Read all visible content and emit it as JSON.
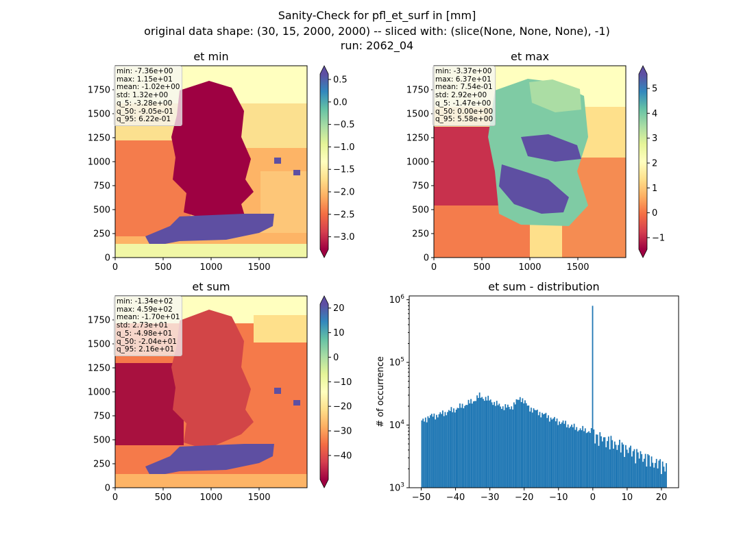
{
  "figure": {
    "title_lines": [
      "Sanity-Check for pfl_et_surf in [mm]",
      "original data shape: (30, 15, 2000, 2000) -- sliced with: (slice(None, None, None), -1)",
      "run: 2062_04"
    ]
  },
  "colormap": "Spectral",
  "colors": {
    "histogram_bar": "#1f77b4",
    "no_data": "#ffffbf",
    "extreme_low": "#9e0142",
    "extreme_high": "#5e4fa2"
  },
  "chart_data": [
    {
      "type": "heatmap",
      "title": "et min",
      "xlim": [
        0,
        2000
      ],
      "ylim": [
        0,
        2000
      ],
      "xticks": [
        "0",
        "500",
        "1000",
        "1500"
      ],
      "yticks": [
        "0",
        "250",
        "500",
        "750",
        "1000",
        "1250",
        "1500",
        "1750"
      ],
      "colorbar": {
        "vmin": -3.28,
        "vmax": 0.622,
        "ticks": [
          "0.5",
          "0.0",
          "−0.5",
          "−1.0",
          "−1.5",
          "−2.0",
          "−2.5",
          "−3.0"
        ],
        "extend": "both"
      },
      "stats": [
        "min: -7.36e+00",
        "max: 1.15e+01",
        "mean: -1.02e+00",
        "std: 1.32e+00",
        "q_5: -3.28e+00",
        "q_50: -9.05e-01",
        "q_95: 6.22e-01"
      ]
    },
    {
      "type": "heatmap",
      "title": "et max",
      "xlim": [
        0,
        2000
      ],
      "ylim": [
        0,
        2000
      ],
      "xticks": [
        "0",
        "500",
        "1000",
        "1500"
      ],
      "yticks": [
        "0",
        "250",
        "500",
        "750",
        "1000",
        "1250",
        "1500",
        "1750"
      ],
      "colorbar": {
        "vmin": -1.47,
        "vmax": 5.58,
        "ticks": [
          "5",
          "4",
          "3",
          "2",
          "1",
          "0",
          "−1"
        ],
        "extend": "both"
      },
      "stats": [
        "min: -3.37e+00",
        "max: 6.37e+01",
        "mean: 7.54e-01",
        "std: 2.92e+00",
        "q_5: -1.47e+00",
        "q_50: 0.00e+00",
        "q_95: 5.58e+00"
      ]
    },
    {
      "type": "heatmap",
      "title": "et sum",
      "xlim": [
        0,
        2000
      ],
      "ylim": [
        0,
        2000
      ],
      "xticks": [
        "0",
        "500",
        "1000",
        "1500"
      ],
      "yticks": [
        "0",
        "250",
        "500",
        "750",
        "1000",
        "1250",
        "1500",
        "1750"
      ],
      "colorbar": {
        "vmin": -49.8,
        "vmax": 21.6,
        "ticks": [
          "20",
          "10",
          "0",
          "−10",
          "−20",
          "−30",
          "−40"
        ],
        "extend": "both"
      },
      "stats": [
        "min: -1.34e+02",
        "max: 4.59e+02",
        "mean: -1.70e+01",
        "std: 2.73e+01",
        "q_5: -4.98e+01",
        "q_50: -2.04e+01",
        "q_95: 2.16e+01"
      ]
    },
    {
      "type": "bar",
      "title": "et sum - distribution",
      "ylabel": "# of occurrence",
      "yscale": "log",
      "xlim": [
        -53.5,
        25
      ],
      "ylim": [
        1000,
        1150000
      ],
      "xticks": [
        "−50",
        "−40",
        "−30",
        "−20",
        "−10",
        "0",
        "10",
        "20"
      ],
      "yticks": [
        "10^3",
        "10^4",
        "10^5",
        "10^6"
      ],
      "bin_range": [
        -50,
        21.6
      ],
      "bin_count": 200,
      "profile": {
        "x": [
          -50,
          -48,
          -45,
          -40,
          -35,
          -33,
          -30,
          -27,
          -24,
          -22,
          -21,
          -19,
          -17,
          -14,
          -11,
          -8,
          -5,
          -2,
          0,
          2,
          5,
          10,
          15,
          18,
          21.6
        ],
        "counts": [
          11000,
          13500,
          14500,
          18000,
          24000,
          29000,
          25000,
          20000,
          19000,
          24000,
          28000,
          20000,
          17000,
          14500,
          12000,
          10500,
          9000,
          8200,
          7800,
          7000,
          6000,
          4600,
          3400,
          2800,
          2400
        ]
      },
      "spike": {
        "x": 0,
        "count": 800000
      }
    }
  ]
}
